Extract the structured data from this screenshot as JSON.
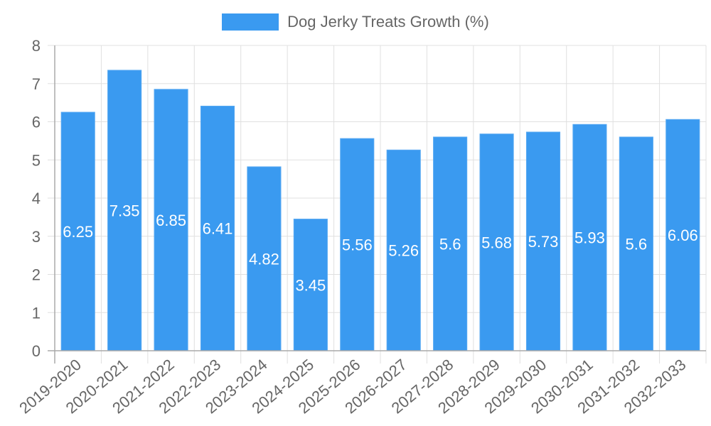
{
  "legend": {
    "label": "Dog Jerky Treats Growth (%)",
    "color": "#3a9af0"
  },
  "colors": {
    "bar_fill": "#3a9af0",
    "bar_border": "#56a8f2",
    "grid": "#e0e0e0",
    "axis": "#aaaaaa",
    "tick_text": "#666666",
    "data_label": "#ffffff"
  },
  "chart_data": {
    "type": "bar",
    "title": "",
    "xlabel": "",
    "ylabel": "",
    "categories": [
      "2019-2020",
      "2020-2021",
      "2021-2022",
      "2022-2023",
      "2023-2024",
      "2024-2025",
      "2025-2026",
      "2026-2027",
      "2027-2028",
      "2028-2029",
      "2029-2030",
      "2030-2031",
      "2031-2032",
      "2032-2033"
    ],
    "series": [
      {
        "name": "Dog Jerky Treats Growth (%)",
        "values": [
          6.25,
          7.35,
          6.85,
          6.41,
          4.82,
          3.45,
          5.56,
          5.26,
          5.6,
          5.68,
          5.73,
          5.93,
          5.6,
          6.06
        ]
      }
    ],
    "ylim": [
      0,
      8
    ],
    "yticks": [
      0,
      1,
      2,
      3,
      4,
      5,
      6,
      7,
      8
    ],
    "grid": true,
    "legend_position": "top",
    "data_labels": true
  }
}
